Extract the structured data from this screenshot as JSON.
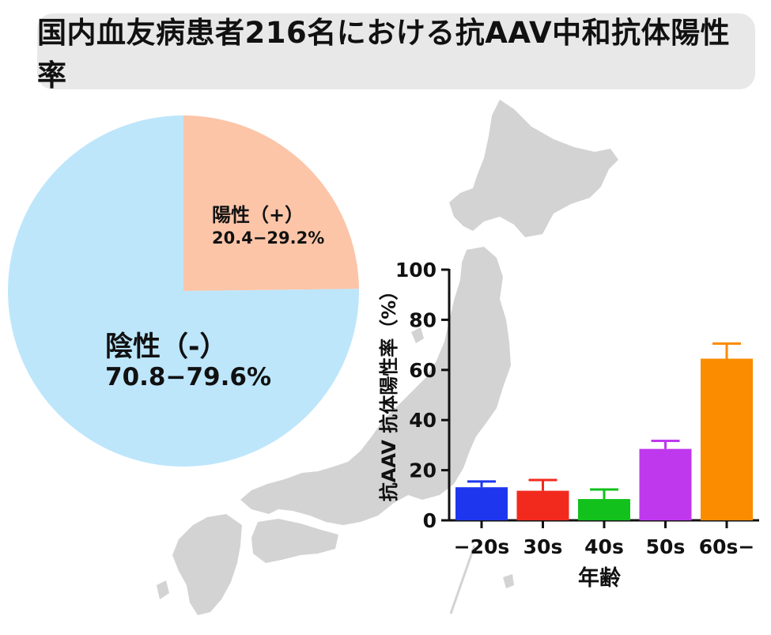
{
  "title": "国内血友病患者216名における抗AAV中和抗体陽性率",
  "colors": {
    "pie_positive": "#fcc5a8",
    "pie_negative": "#bde6fb",
    "map": "#d3d3d3"
  },
  "chart_data": [
    {
      "type": "pie",
      "slices": [
        {
          "label": "陽性（+）",
          "range": "20.4−29.2%",
          "value": 24.8,
          "color": "#fcc5a8"
        },
        {
          "label": "陰性（-）",
          "range": "70.8−79.6%",
          "value": 75.2,
          "color": "#bde6fb"
        }
      ]
    },
    {
      "type": "bar",
      "categories": [
        "−20s",
        "30s",
        "40s",
        "50s",
        "60s−"
      ],
      "values": [
        13.2,
        11.8,
        8.5,
        28.5,
        64.5
      ],
      "errors": [
        2.3,
        4.3,
        3.8,
        3.2,
        6.0
      ],
      "colors": [
        "#1e37ee",
        "#f22a1e",
        "#12c11b",
        "#c038ee",
        "#fb8c00"
      ],
      "xlabel": "年齢",
      "ylabel": "抗AAV 抗体陽性率（%）",
      "ylim": [
        0,
        100
      ],
      "yticks": [
        0,
        20,
        40,
        60,
        80,
        100
      ]
    }
  ]
}
